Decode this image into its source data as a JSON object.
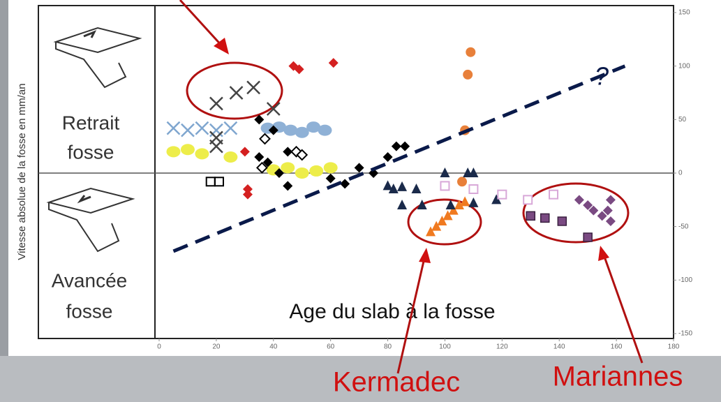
{
  "chart_data": {
    "type": "scatter",
    "y_label": "Vitesse absolue de la fosse en mm/an",
    "x_label": "Age du slab à la fosse",
    "retreat_label": [
      "Retrait",
      "fosse"
    ],
    "advance_label": [
      "Avancée",
      "fosse"
    ],
    "annotations": [
      "Kermadec",
      "Mariannes",
      "?"
    ],
    "xlim": [
      0,
      180
    ],
    "xticks": [
      0,
      20,
      40,
      60,
      80,
      100,
      120,
      140,
      160,
      180
    ],
    "ylim": [
      -150,
      150
    ],
    "yticks": [
      -150,
      -100,
      -50,
      0,
      50,
      100,
      150
    ],
    "series": [
      {
        "color": "#d42020",
        "marker": "diamond",
        "x": [
          47,
          49,
          61,
          30,
          31,
          31
        ],
        "values": [
          100,
          97,
          103,
          20,
          -15,
          -20
        ]
      },
      {
        "color": "#e8803a",
        "marker": "circle",
        "x": [
          109,
          108,
          107,
          106
        ],
        "values": [
          113,
          92,
          40,
          -8
        ]
      },
      {
        "color": "#f07a20",
        "marker": "triangle",
        "x": [
          95,
          97,
          99,
          101,
          103,
          105,
          107
        ],
        "values": [
          -55,
          -50,
          -45,
          -40,
          -35,
          -30,
          -27
        ]
      },
      {
        "color": "#7fa6cf",
        "marker": "x",
        "x": [
          5,
          10,
          15,
          20,
          25
        ],
        "values": [
          42,
          40,
          42,
          40,
          42
        ]
      },
      {
        "color": "#8fb1d6",
        "marker": "blob",
        "x": [
          38,
          42,
          46,
          50,
          54,
          58
        ],
        "values": [
          42,
          43,
          40,
          38,
          43,
          40
        ]
      },
      {
        "color": "#eded4a",
        "marker": "blob",
        "x": [
          5,
          10,
          15,
          25,
          40,
          45,
          50,
          55,
          60
        ],
        "values": [
          20,
          22,
          18,
          15,
          3,
          5,
          0,
          2,
          5
        ]
      },
      {
        "color": "#444444",
        "marker": "x",
        "x": [
          20,
          27,
          33,
          40,
          20,
          20
        ],
        "values": [
          65,
          75,
          80,
          60,
          25,
          33
        ]
      },
      {
        "color": "#000000",
        "marker": "diamond",
        "x": [
          35,
          40,
          35,
          38,
          45,
          42,
          45,
          60,
          70,
          75,
          80,
          83,
          86,
          65
        ],
        "values": [
          50,
          40,
          15,
          10,
          20,
          0,
          -12,
          -5,
          5,
          0,
          15,
          25,
          25,
          -10
        ]
      },
      {
        "color": "#000000",
        "marker": "open-diamond",
        "x": [
          37,
          48,
          50,
          36
        ],
        "values": [
          32,
          20,
          17,
          5
        ]
      },
      {
        "color": "#1a2a4a",
        "marker": "triangle",
        "x": [
          80,
          82,
          85,
          90,
          92,
          100,
          102,
          108,
          110,
          110,
          118,
          85
        ],
        "values": [
          -12,
          -15,
          -13,
          -15,
          -30,
          0,
          -30,
          0,
          0,
          -28,
          -25,
          -30
        ]
      },
      {
        "color": "#000000",
        "marker": "open-square",
        "x": [
          18,
          21
        ],
        "values": [
          -8,
          -8
        ]
      },
      {
        "color": "#d8a8d8",
        "marker": "open-square",
        "x": [
          100,
          110,
          120,
          129,
          138
        ],
        "values": [
          -12,
          -15,
          -20,
          -25,
          -20
        ]
      },
      {
        "color": "#7a4a82",
        "marker": "square",
        "x": [
          130,
          135,
          141,
          150
        ],
        "values": [
          -40,
          -42,
          -45,
          -60
        ]
      },
      {
        "color": "#7a4a82",
        "marker": "diamond",
        "x": [
          147,
          150,
          152,
          155,
          158,
          157,
          158
        ],
        "values": [
          -25,
          -30,
          -35,
          -40,
          -25,
          -35,
          -45
        ]
      },
      {
        "color": "#0a1a4a",
        "marker": "dashed-line",
        "x": [
          5,
          163
        ],
        "values": [
          -73,
          100
        ]
      }
    ]
  }
}
